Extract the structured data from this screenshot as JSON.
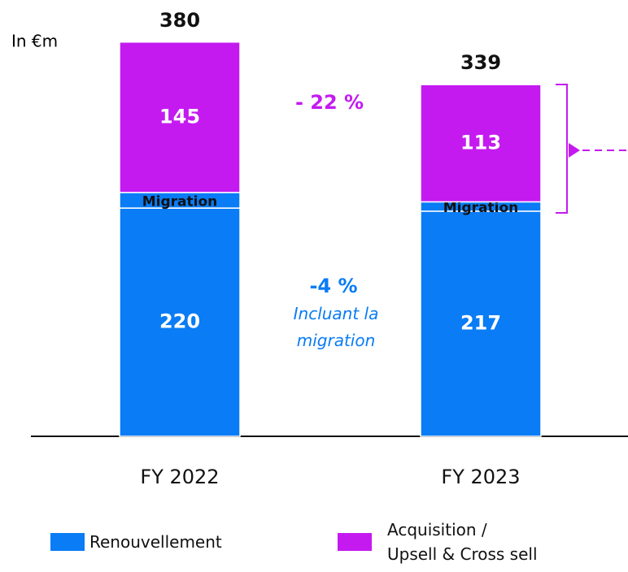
{
  "chart_data": {
    "type": "stacked_bar",
    "unit_label": "In €m",
    "categories": [
      "FY 2022",
      "FY 2023"
    ],
    "series": [
      {
        "name": "Renouvellement",
        "color": "#0a7cf5",
        "values": [
          220,
          217
        ]
      },
      {
        "name": "Migration",
        "color": "#0a7cf5",
        "values": [
          15,
          9
        ]
      },
      {
        "name": "Acquisition /\nUpsell & Cross sell",
        "color": "#c41af0",
        "values": [
          145,
          113
        ]
      }
    ],
    "totals": [
      380,
      339
    ],
    "annotations": [
      {
        "text": "- 22 %",
        "color": "#c41af0"
      },
      {
        "text": "-4 %",
        "color": "#0a7cf5"
      },
      {
        "text": "Incluant la\nmigration",
        "color": "#0a7cf5"
      }
    ],
    "ylim": [
      0,
      390
    ]
  }
}
